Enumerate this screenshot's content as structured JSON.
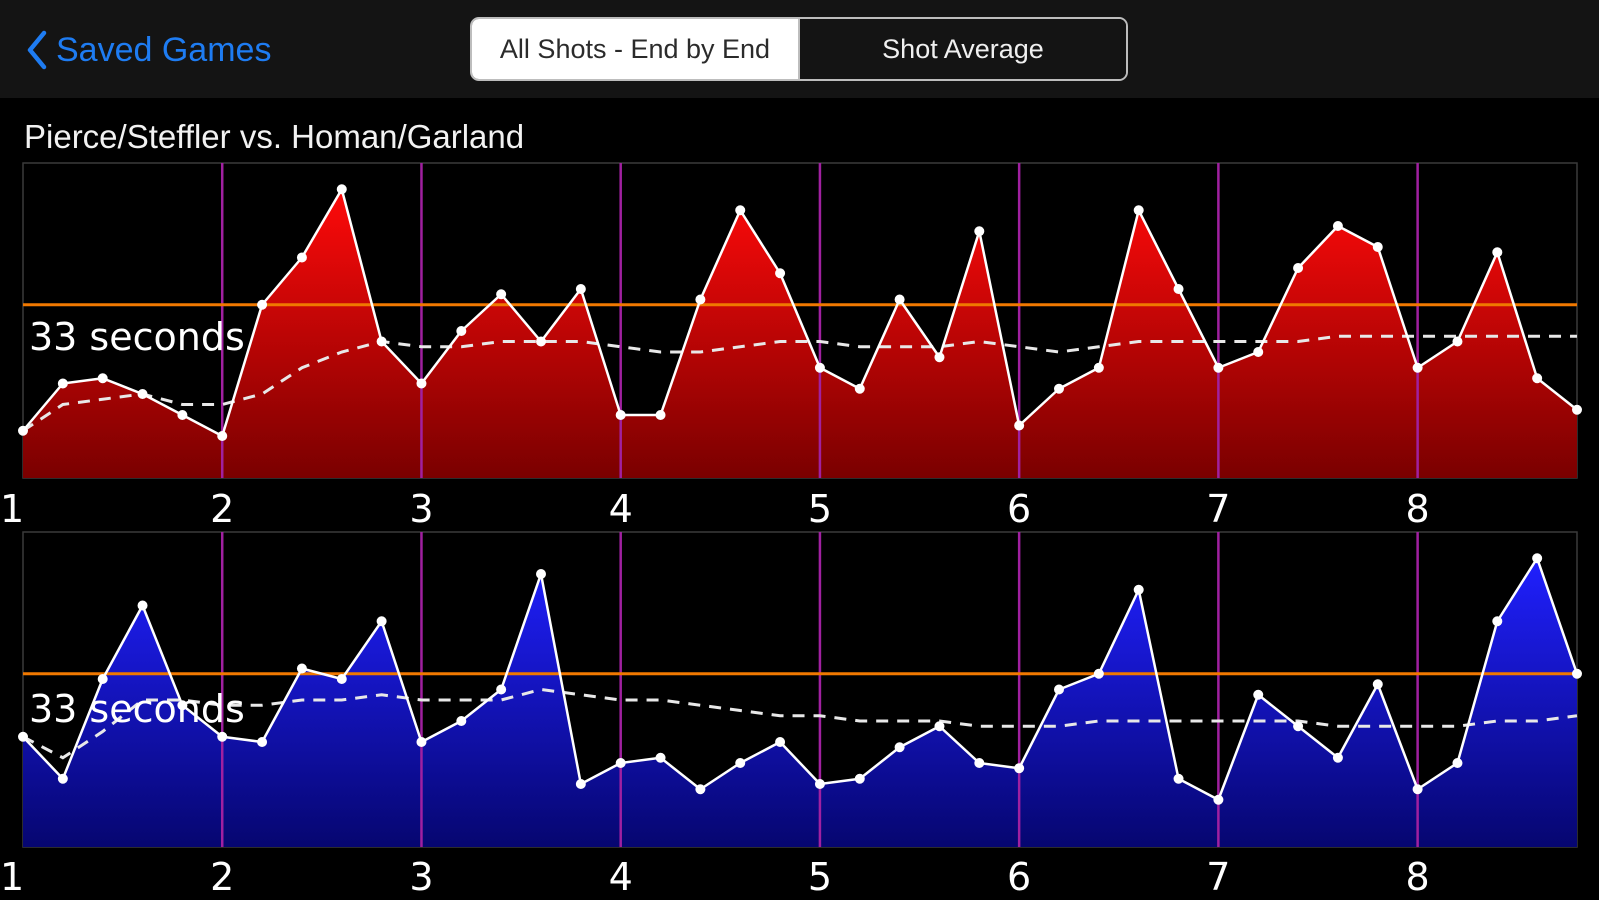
{
  "nav": {
    "back_label": "Saved Games",
    "segments": [
      "All Shots - End by End",
      "Shot Average"
    ],
    "selected_segment": 0
  },
  "title": "Pierce/Steffler vs. Homan/Garland",
  "colors": {
    "red": "#d40000",
    "blue": "#1010e0",
    "end_divider": "#a020a0",
    "average_line": "#f07800",
    "accent": "#1e7cf2"
  },
  "chart_data": [
    {
      "type": "area",
      "series_color": "red",
      "average_label": "33 seconds",
      "average": 33,
      "ylim": [
        0,
        60
      ],
      "xlim": [
        1,
        8.8
      ],
      "x_ticks": [
        1,
        2,
        3,
        4,
        5,
        6,
        7,
        8
      ],
      "end_dividers": [
        2,
        3,
        4,
        5,
        6,
        7,
        8
      ],
      "x": [
        1.0,
        1.2,
        1.4,
        1.6,
        1.8,
        2.0,
        2.2,
        2.4,
        2.6,
        2.8,
        3.0,
        3.2,
        3.4,
        3.6,
        3.8,
        4.0,
        4.2,
        4.4,
        4.6,
        4.8,
        5.0,
        5.2,
        5.4,
        5.6,
        5.8,
        6.0,
        6.2,
        6.4,
        6.6,
        6.8,
        7.0,
        7.2,
        7.4,
        7.6,
        7.8,
        8.0,
        8.2,
        8.4,
        8.6,
        8.8
      ],
      "values": [
        9,
        18,
        19,
        16,
        12,
        8,
        33,
        42,
        55,
        26,
        18,
        28,
        35,
        26,
        36,
        12,
        12,
        34,
        51,
        39,
        21,
        17,
        34,
        23,
        47,
        10,
        17,
        21,
        51,
        36,
        21,
        24,
        40,
        48,
        44,
        21,
        26,
        43,
        19,
        13
      ],
      "running_average": [
        9,
        14,
        15,
        16,
        14,
        14,
        16,
        21,
        24,
        26,
        25,
        25,
        26,
        26,
        26,
        25,
        24,
        24,
        25,
        26,
        26,
        25,
        25,
        25,
        26,
        25,
        24,
        25,
        26,
        26,
        26,
        26,
        26,
        27,
        27,
        27,
        27,
        27,
        27,
        27
      ]
    },
    {
      "type": "area",
      "series_color": "blue",
      "average_label": "33 seconds",
      "average": 33,
      "ylim": [
        0,
        60
      ],
      "xlim": [
        1,
        8.8
      ],
      "x_ticks": [
        1,
        2,
        3,
        4,
        5,
        6,
        7,
        8
      ],
      "end_dividers": [
        2,
        3,
        4,
        5,
        6,
        7,
        8
      ],
      "x": [
        1.0,
        1.2,
        1.4,
        1.6,
        1.8,
        2.0,
        2.2,
        2.4,
        2.6,
        2.8,
        3.0,
        3.2,
        3.4,
        3.6,
        3.8,
        4.0,
        4.2,
        4.4,
        4.6,
        4.8,
        5.0,
        5.2,
        5.4,
        5.6,
        5.8,
        6.0,
        6.2,
        6.4,
        6.6,
        6.8,
        7.0,
        7.2,
        7.4,
        7.6,
        7.8,
        8.0,
        8.2,
        8.4,
        8.6,
        8.8
      ],
      "values": [
        21,
        13,
        32,
        46,
        27,
        21,
        20,
        34,
        32,
        43,
        20,
        24,
        30,
        52,
        12,
        16,
        17,
        11,
        16,
        20,
        12,
        13,
        19,
        23,
        16,
        15,
        30,
        33,
        49,
        13,
        9,
        29,
        23,
        17,
        31,
        11,
        16,
        43,
        55,
        33
      ],
      "running_average": [
        21,
        17,
        22,
        28,
        28,
        27,
        27,
        28,
        28,
        29,
        28,
        28,
        28,
        30,
        29,
        28,
        28,
        27,
        26,
        25,
        25,
        24,
        24,
        24,
        23,
        23,
        23,
        24,
        24,
        24,
        24,
        24,
        24,
        23,
        23,
        23,
        23,
        24,
        24,
        25
      ]
    }
  ]
}
